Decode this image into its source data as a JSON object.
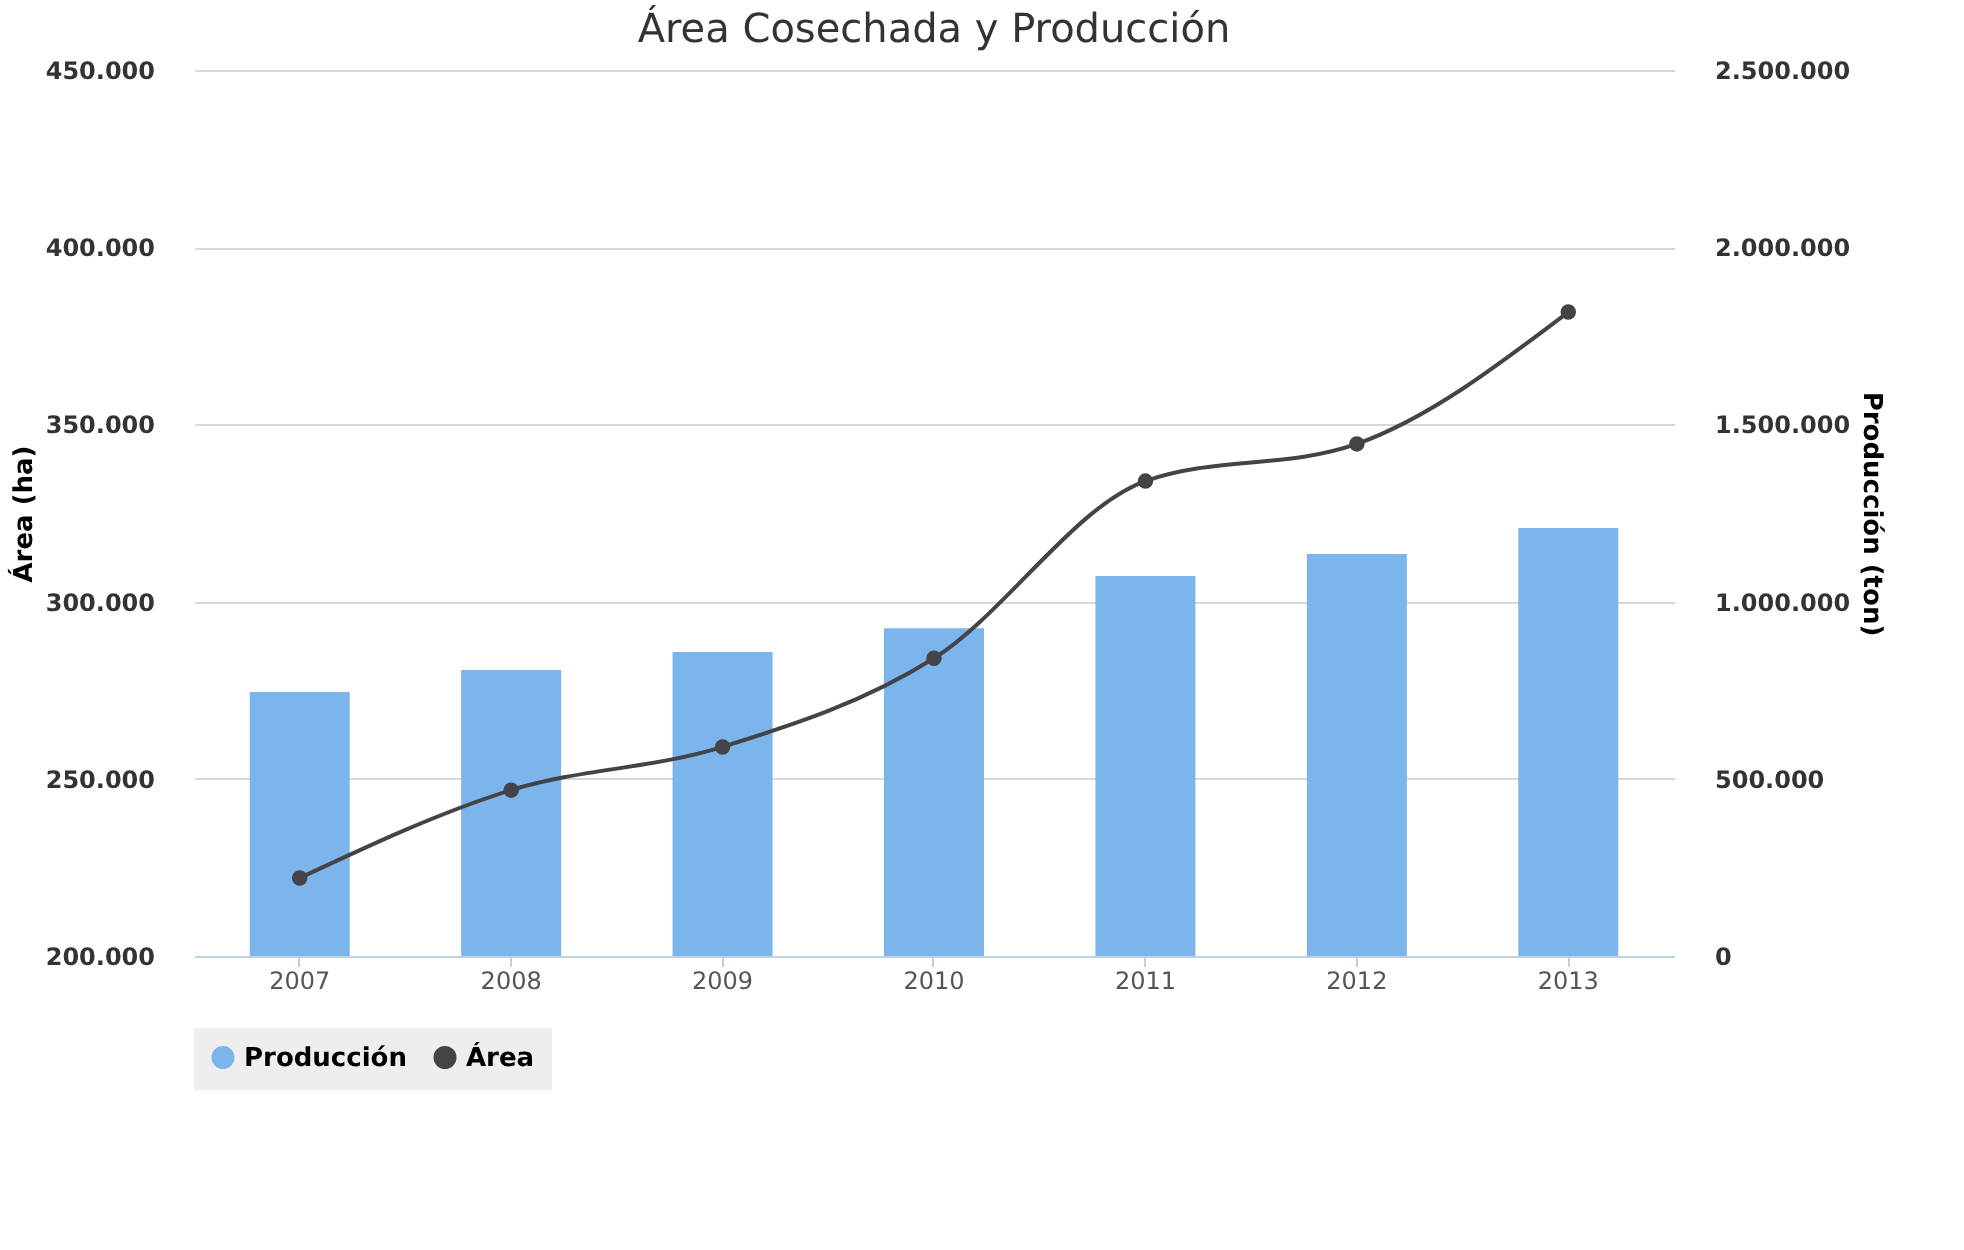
{
  "chart_data": {
    "type": "bar",
    "title": "Área Cosechada y Producción",
    "categories": [
      "2007",
      "2008",
      "2009",
      "2010",
      "2011",
      "2012",
      "2013"
    ],
    "ylabel": "Área (ha)",
    "y2label": "Producción (ton)",
    "series": [
      {
        "name": "Producción",
        "axis": "y2",
        "color": "#7cb5ec",
        "values": [
          745000,
          807000,
          858000,
          925000,
          1072000,
          1134000,
          1208000
        ]
      },
      {
        "name": "Área",
        "type": "line",
        "axis": "y",
        "color": "#434348",
        "marker": "circle",
        "values": [
          222000,
          246800,
          259000,
          284000,
          334000,
          344500,
          381700
        ]
      }
    ],
    "ylim": [
      200000,
      450000
    ],
    "yticks": [
      {
        "value": 200000,
        "label": "200.000"
      },
      {
        "value": 250000,
        "label": "250.000"
      },
      {
        "value": 300000,
        "label": "300.000"
      },
      {
        "value": 350000,
        "label": "350.000"
      },
      {
        "value": 400000,
        "label": "400.000"
      },
      {
        "value": 450000,
        "label": "450.000"
      }
    ],
    "y2lim": [
      0,
      2500000
    ],
    "y2ticks": [
      0,
      {
        "value": 500000,
        "label": "500.000"
      },
      {
        "value": 1000000,
        "label": "1.000.000"
      },
      {
        "value": 1500000,
        "label": "1.500.000"
      },
      {
        "value": 2000000,
        "label": "2.000.000"
      },
      {
        "value": 2500000,
        "label": "2.500.000"
      }
    ],
    "grid": "y",
    "legend": "bottom"
  }
}
